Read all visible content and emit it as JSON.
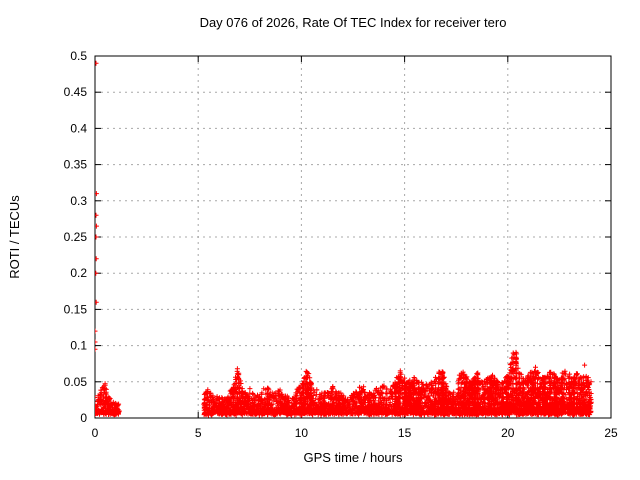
{
  "chart_data": {
    "type": "scatter",
    "title": "Day 076 of 2026, Rate Of TEC Index for receiver tero",
    "xlabel": "GPS time / hours",
    "ylabel": "ROTI / TECUs",
    "xlim": [
      0,
      25
    ],
    "ylim": [
      0,
      0.5
    ],
    "xticks": [
      0,
      5,
      10,
      15,
      20,
      25
    ],
    "xtick_labels": [
      "0",
      "5",
      "10",
      "15",
      "20",
      "25"
    ],
    "yticks": [
      0,
      0.05,
      0.1,
      0.15,
      0.2,
      0.25,
      0.3,
      0.35,
      0.4,
      0.45,
      0.5
    ],
    "ytick_labels": [
      "0",
      "0.05",
      "0.1",
      "0.15",
      "0.2",
      "0.25",
      "0.3",
      "0.35",
      "0.4",
      "0.45",
      "0.5"
    ],
    "grid": true,
    "legend": null,
    "marker": {
      "shape": "plus",
      "color": "#ff0000",
      "size": 5
    },
    "axis_color": "#000000",
    "grid_color": "#a8a8a8",
    "background_color": "#ffffff",
    "outliers": [
      [
        0.05,
        0.49
      ],
      [
        0.07,
        0.31
      ],
      [
        0.05,
        0.28
      ],
      [
        0.07,
        0.265
      ],
      [
        0.05,
        0.25
      ],
      [
        0.06,
        0.22
      ],
      [
        0.04,
        0.2
      ],
      [
        0.06,
        0.16
      ],
      [
        0.0,
        0.12
      ],
      [
        0.0,
        0.105
      ],
      [
        0.0,
        0.095
      ],
      [
        23.72,
        0.073
      ]
    ],
    "bands": [
      {
        "x_start": 0.0,
        "x_end": 1.18,
        "base": 0.006,
        "envelope": [
          [
            0.0,
            0.03
          ],
          [
            0.15,
            0.032
          ],
          [
            0.3,
            0.04
          ],
          [
            0.45,
            0.052
          ],
          [
            0.6,
            0.035
          ],
          [
            0.75,
            0.025
          ],
          [
            0.9,
            0.02
          ],
          [
            1.05,
            0.024
          ],
          [
            1.18,
            0.016
          ]
        ]
      },
      {
        "x_start": 5.28,
        "x_end": 24.05,
        "base": 0.006,
        "envelope": [
          [
            5.28,
            0.042
          ],
          [
            5.6,
            0.036
          ],
          [
            5.9,
            0.03
          ],
          [
            6.2,
            0.028
          ],
          [
            6.5,
            0.034
          ],
          [
            6.75,
            0.05
          ],
          [
            6.9,
            0.07
          ],
          [
            7.05,
            0.058
          ],
          [
            7.2,
            0.04
          ],
          [
            7.5,
            0.042
          ],
          [
            7.8,
            0.03
          ],
          [
            8.1,
            0.036
          ],
          [
            8.35,
            0.045
          ],
          [
            8.6,
            0.032
          ],
          [
            8.9,
            0.046
          ],
          [
            9.1,
            0.03
          ],
          [
            9.4,
            0.028
          ],
          [
            9.7,
            0.033
          ],
          [
            9.95,
            0.046
          ],
          [
            10.15,
            0.055
          ],
          [
            10.3,
            0.07
          ],
          [
            10.45,
            0.055
          ],
          [
            10.7,
            0.04
          ],
          [
            11.0,
            0.033
          ],
          [
            11.3,
            0.038
          ],
          [
            11.55,
            0.045
          ],
          [
            11.8,
            0.036
          ],
          [
            12.1,
            0.028
          ],
          [
            12.4,
            0.033
          ],
          [
            12.7,
            0.04
          ],
          [
            13.0,
            0.043
          ],
          [
            13.3,
            0.035
          ],
          [
            13.6,
            0.04
          ],
          [
            13.9,
            0.045
          ],
          [
            14.2,
            0.04
          ],
          [
            14.5,
            0.05
          ],
          [
            14.8,
            0.065
          ],
          [
            15.1,
            0.05
          ],
          [
            15.5,
            0.056
          ],
          [
            16.0,
            0.046
          ],
          [
            16.4,
            0.052
          ],
          [
            16.8,
            0.068
          ],
          [
            17.0,
            0.05
          ],
          [
            17.2,
            0.036
          ],
          [
            17.5,
            0.038
          ],
          [
            17.7,
            0.07
          ],
          [
            17.9,
            0.06
          ],
          [
            18.2,
            0.05
          ],
          [
            18.5,
            0.065
          ],
          [
            18.7,
            0.05
          ],
          [
            19.0,
            0.055
          ],
          [
            19.3,
            0.058
          ],
          [
            19.6,
            0.048
          ],
          [
            19.85,
            0.055
          ],
          [
            20.05,
            0.062
          ],
          [
            20.2,
            0.09
          ],
          [
            20.35,
            0.105
          ],
          [
            20.5,
            0.075
          ],
          [
            20.7,
            0.055
          ],
          [
            20.95,
            0.058
          ],
          [
            21.15,
            0.065
          ],
          [
            21.35,
            0.072
          ],
          [
            21.6,
            0.055
          ],
          [
            21.85,
            0.058
          ],
          [
            22.1,
            0.065
          ],
          [
            22.35,
            0.06
          ],
          [
            22.6,
            0.062
          ],
          [
            22.85,
            0.067
          ],
          [
            23.1,
            0.055
          ],
          [
            23.35,
            0.065
          ],
          [
            23.6,
            0.055
          ],
          [
            23.85,
            0.06
          ],
          [
            24.05,
            0.048
          ]
        ]
      }
    ]
  }
}
